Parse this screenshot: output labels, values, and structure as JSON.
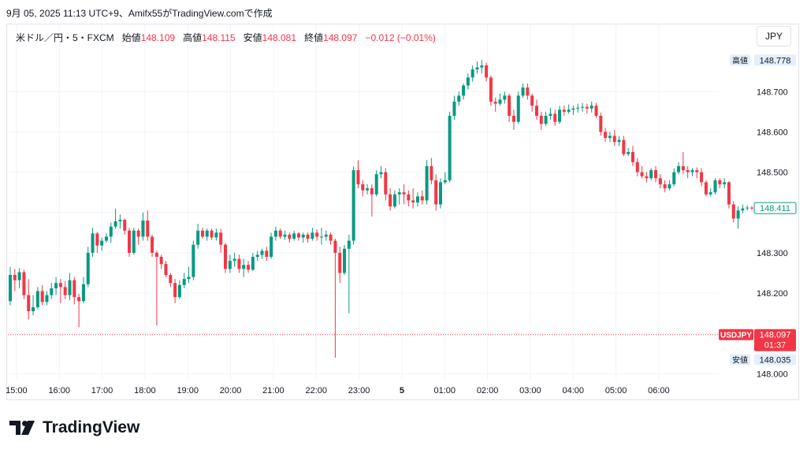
{
  "header": {
    "title": "9月 05, 2025 11:13 UTC+9、Amifx55がTradingView.comで作成"
  },
  "legend": {
    "symbol": "米ドル／円・5・FXCM",
    "open_label": "始値",
    "open": "148.109",
    "high_label": "高値",
    "high": "148.115",
    "low_label": "安値",
    "low": "148.081",
    "close_label": "終値",
    "close": "148.097",
    "change": "−0.012 (−0.01%)"
  },
  "currency_button": "JPY",
  "brand": {
    "name": "TradingView"
  },
  "colors": {
    "up": "#089981",
    "down": "#f23645",
    "grid": "#f0f3fa",
    "axis_text": "#131722",
    "tag_bg": "#e3effd"
  },
  "chart_data": {
    "type": "candlestick",
    "symbol": "USDJPY",
    "x_ticks": [
      "15:00",
      "16:00",
      "17:00",
      "18:00",
      "19:00",
      "20:00",
      "21:00",
      "22:00",
      "23:00",
      "5",
      "01:00",
      "02:00",
      "03:00",
      "04:00",
      "05:00",
      "06:00"
    ],
    "y_ticks": [
      "148.700",
      "148.600",
      "148.500",
      "148.300",
      "148.200",
      "148.000"
    ],
    "ylim": [
      147.985,
      148.81
    ],
    "xlim_hours": [
      14.8,
      31.4
    ],
    "price_tags": {
      "high": {
        "label": "高値",
        "value": "148.778"
      },
      "low": {
        "label": "安値",
        "value": "148.035"
      },
      "last": {
        "value": "148.411"
      },
      "current": {
        "label": "USDJPY",
        "value": "148.097",
        "countdown": "01:37"
      }
    },
    "candles": [
      {
        "o": 148.18,
        "h": 148.265,
        "c": 148.245,
        "l": 148.17
      },
      {
        "o": 148.245,
        "h": 148.26,
        "c": 148.232,
        "l": 148.205
      },
      {
        "o": 148.232,
        "h": 148.262,
        "c": 148.252,
        "l": 148.212
      },
      {
        "o": 148.252,
        "h": 148.258,
        "c": 148.195,
        "l": 148.185
      },
      {
        "o": 148.195,
        "h": 148.235,
        "c": 148.155,
        "l": 148.135
      },
      {
        "o": 148.155,
        "h": 148.195,
        "c": 148.165,
        "l": 148.145
      },
      {
        "o": 148.165,
        "h": 148.215,
        "c": 148.205,
        "l": 148.16
      },
      {
        "o": 148.205,
        "h": 148.22,
        "c": 148.178,
        "l": 148.17
      },
      {
        "o": 148.178,
        "h": 148.205,
        "c": 148.195,
        "l": 148.17
      },
      {
        "o": 148.195,
        "h": 148.225,
        "c": 148.212,
        "l": 148.185
      },
      {
        "o": 148.212,
        "h": 148.24,
        "c": 148.225,
        "l": 148.195
      },
      {
        "o": 148.225,
        "h": 148.235,
        "c": 148.215,
        "l": 148.175
      },
      {
        "o": 148.215,
        "h": 148.23,
        "c": 148.195,
        "l": 148.185
      },
      {
        "o": 148.195,
        "h": 148.25,
        "c": 148.232,
        "l": 148.182
      },
      {
        "o": 148.232,
        "h": 148.24,
        "c": 148.19,
        "l": 148.172
      },
      {
        "o": 148.19,
        "h": 148.198,
        "c": 148.18,
        "l": 148.115
      },
      {
        "o": 148.18,
        "h": 148.24,
        "c": 148.222,
        "l": 148.175
      },
      {
        "o": 148.222,
        "h": 148.315,
        "c": 148.3,
        "l": 148.215
      },
      {
        "o": 148.3,
        "h": 148.362,
        "c": 148.348,
        "l": 148.29
      },
      {
        "o": 148.348,
        "h": 148.352,
        "c": 148.318,
        "l": 148.3
      },
      {
        "o": 148.318,
        "h": 148.338,
        "c": 148.33,
        "l": 148.305
      },
      {
        "o": 148.33,
        "h": 148.348,
        "c": 148.34,
        "l": 148.325
      },
      {
        "o": 148.34,
        "h": 148.375,
        "c": 148.365,
        "l": 148.325
      },
      {
        "o": 148.365,
        "h": 148.41,
        "c": 148.378,
        "l": 148.36
      },
      {
        "o": 148.378,
        "h": 148.395,
        "c": 148.382,
        "l": 148.36
      },
      {
        "o": 148.382,
        "h": 148.385,
        "c": 148.355,
        "l": 148.345
      },
      {
        "o": 148.355,
        "h": 148.362,
        "c": 148.3,
        "l": 148.29
      },
      {
        "o": 148.3,
        "h": 148.362,
        "c": 148.355,
        "l": 148.295
      },
      {
        "o": 148.355,
        "h": 148.36,
        "c": 148.34,
        "l": 148.32
      },
      {
        "o": 148.34,
        "h": 148.4,
        "c": 148.38,
        "l": 148.33
      },
      {
        "o": 148.38,
        "h": 148.405,
        "c": 148.34,
        "l": 148.33
      },
      {
        "o": 148.34,
        "h": 148.345,
        "c": 148.3,
        "l": 148.29
      },
      {
        "o": 148.3,
        "h": 148.305,
        "c": 148.29,
        "l": 148.12
      },
      {
        "o": 148.29,
        "h": 148.295,
        "c": 148.272,
        "l": 148.26
      },
      {
        "o": 148.272,
        "h": 148.28,
        "c": 148.245,
        "l": 148.24
      },
      {
        "o": 148.245,
        "h": 148.25,
        "c": 148.225,
        "l": 148.215
      },
      {
        "o": 148.225,
        "h": 148.235,
        "c": 148.19,
        "l": 148.175
      },
      {
        "o": 148.19,
        "h": 148.232,
        "c": 148.22,
        "l": 148.185
      },
      {
        "o": 148.22,
        "h": 148.25,
        "c": 148.235,
        "l": 148.212
      },
      {
        "o": 148.235,
        "h": 148.265,
        "c": 148.24,
        "l": 148.225
      },
      {
        "o": 148.24,
        "h": 148.33,
        "c": 148.32,
        "l": 148.232
      },
      {
        "o": 148.32,
        "h": 148.372,
        "c": 148.355,
        "l": 148.31
      },
      {
        "o": 148.355,
        "h": 148.362,
        "c": 148.34,
        "l": 148.335
      },
      {
        "o": 148.34,
        "h": 148.36,
        "c": 148.355,
        "l": 148.33
      },
      {
        "o": 148.355,
        "h": 148.36,
        "c": 148.338,
        "l": 148.332
      },
      {
        "o": 148.338,
        "h": 148.36,
        "c": 148.35,
        "l": 148.33
      },
      {
        "o": 148.35,
        "h": 148.36,
        "c": 148.32,
        "l": 148.3
      },
      {
        "o": 148.32,
        "h": 148.325,
        "c": 148.26,
        "l": 148.25
      },
      {
        "o": 148.26,
        "h": 148.295,
        "c": 148.28,
        "l": 148.25
      },
      {
        "o": 148.28,
        "h": 148.3,
        "c": 148.285,
        "l": 148.265
      },
      {
        "o": 148.285,
        "h": 148.295,
        "c": 148.26,
        "l": 148.25
      },
      {
        "o": 148.26,
        "h": 148.285,
        "c": 148.27,
        "l": 148.24
      },
      {
        "o": 148.27,
        "h": 148.28,
        "c": 148.258,
        "l": 148.25
      },
      {
        "o": 148.258,
        "h": 148.3,
        "c": 148.29,
        "l": 148.255
      },
      {
        "o": 148.29,
        "h": 148.305,
        "c": 148.295,
        "l": 148.28
      },
      {
        "o": 148.295,
        "h": 148.31,
        "c": 148.305,
        "l": 148.285
      },
      {
        "o": 148.305,
        "h": 148.315,
        "c": 148.29,
        "l": 148.28
      },
      {
        "o": 148.29,
        "h": 148.35,
        "c": 148.34,
        "l": 148.285
      },
      {
        "o": 148.34,
        "h": 148.365,
        "c": 148.355,
        "l": 148.33
      },
      {
        "o": 148.355,
        "h": 148.36,
        "c": 148.34,
        "l": 148.335
      },
      {
        "o": 148.34,
        "h": 148.355,
        "c": 148.345,
        "l": 148.332
      },
      {
        "o": 148.345,
        "h": 148.35,
        "c": 148.335,
        "l": 148.325
      },
      {
        "o": 148.335,
        "h": 148.355,
        "c": 148.348,
        "l": 148.33
      },
      {
        "o": 148.348,
        "h": 148.352,
        "c": 148.338,
        "l": 148.33
      },
      {
        "o": 148.338,
        "h": 148.35,
        "c": 148.345,
        "l": 148.325
      },
      {
        "o": 148.345,
        "h": 148.35,
        "c": 148.335,
        "l": 148.325
      },
      {
        "o": 148.335,
        "h": 148.362,
        "c": 148.35,
        "l": 148.33
      },
      {
        "o": 148.35,
        "h": 148.358,
        "c": 148.34,
        "l": 148.33
      },
      {
        "o": 148.34,
        "h": 148.362,
        "c": 148.34,
        "l": 148.32
      },
      {
        "o": 148.34,
        "h": 148.355,
        "c": 148.345,
        "l": 148.33
      },
      {
        "o": 148.345,
        "h": 148.35,
        "c": 148.33,
        "l": 148.32
      },
      {
        "o": 148.33,
        "h": 148.335,
        "c": 148.3,
        "l": 148.04
      },
      {
        "o": 148.3,
        "h": 148.315,
        "c": 148.25,
        "l": 148.225
      },
      {
        "o": 148.25,
        "h": 148.32,
        "c": 148.31,
        "l": 148.245
      },
      {
        "o": 148.31,
        "h": 148.345,
        "c": 148.33,
        "l": 148.15
      },
      {
        "o": 148.33,
        "h": 148.515,
        "c": 148.505,
        "l": 148.32
      },
      {
        "o": 148.505,
        "h": 148.53,
        "c": 148.47,
        "l": 148.46
      },
      {
        "o": 148.47,
        "h": 148.48,
        "c": 148.455,
        "l": 148.44
      },
      {
        "o": 148.455,
        "h": 148.47,
        "c": 148.46,
        "l": 148.445
      },
      {
        "o": 148.46,
        "h": 148.47,
        "c": 148.445,
        "l": 148.39
      },
      {
        "o": 148.445,
        "h": 148.505,
        "c": 148.495,
        "l": 148.44
      },
      {
        "o": 148.495,
        "h": 148.515,
        "c": 148.5,
        "l": 148.485
      },
      {
        "o": 148.5,
        "h": 148.51,
        "c": 148.445,
        "l": 148.43
      },
      {
        "o": 148.445,
        "h": 148.46,
        "c": 148.415,
        "l": 148.405
      },
      {
        "o": 148.415,
        "h": 148.455,
        "c": 148.445,
        "l": 148.41
      },
      {
        "o": 148.445,
        "h": 148.46,
        "c": 148.45,
        "l": 148.42
      },
      {
        "o": 148.45,
        "h": 148.47,
        "c": 148.445,
        "l": 148.42
      },
      {
        "o": 148.445,
        "h": 148.455,
        "c": 148.43,
        "l": 148.415
      },
      {
        "o": 148.43,
        "h": 148.46,
        "c": 148.425,
        "l": 148.41
      },
      {
        "o": 148.425,
        "h": 148.45,
        "c": 148.44,
        "l": 148.415
      },
      {
        "o": 148.44,
        "h": 148.455,
        "c": 148.43,
        "l": 148.42
      },
      {
        "o": 148.43,
        "h": 148.53,
        "c": 148.515,
        "l": 148.42
      },
      {
        "o": 148.515,
        "h": 148.535,
        "c": 148.48,
        "l": 148.47
      },
      {
        "o": 148.48,
        "h": 148.495,
        "c": 148.42,
        "l": 148.405
      },
      {
        "o": 148.42,
        "h": 148.485,
        "c": 148.475,
        "l": 148.41
      },
      {
        "o": 148.475,
        "h": 148.5,
        "c": 148.48,
        "l": 148.47
      },
      {
        "o": 148.48,
        "h": 148.65,
        "c": 148.64,
        "l": 148.475
      },
      {
        "o": 148.64,
        "h": 148.69,
        "c": 148.675,
        "l": 148.63
      },
      {
        "o": 148.675,
        "h": 148.7,
        "c": 148.69,
        "l": 148.665
      },
      {
        "o": 148.69,
        "h": 148.72,
        "c": 148.715,
        "l": 148.68
      },
      {
        "o": 148.715,
        "h": 148.745,
        "c": 148.735,
        "l": 148.705
      },
      {
        "o": 148.735,
        "h": 148.765,
        "c": 148.755,
        "l": 148.725
      },
      {
        "o": 148.755,
        "h": 148.775,
        "c": 148.76,
        "l": 148.745
      },
      {
        "o": 148.76,
        "h": 148.778,
        "c": 148.765,
        "l": 148.745
      },
      {
        "o": 148.765,
        "h": 148.772,
        "c": 148.735,
        "l": 148.725
      },
      {
        "o": 148.735,
        "h": 148.74,
        "c": 148.675,
        "l": 148.665
      },
      {
        "o": 148.675,
        "h": 148.685,
        "c": 148.67,
        "l": 148.65
      },
      {
        "o": 148.67,
        "h": 148.695,
        "c": 148.68,
        "l": 148.665
      },
      {
        "o": 148.68,
        "h": 148.7,
        "c": 148.69,
        "l": 148.67
      },
      {
        "o": 148.69,
        "h": 148.695,
        "c": 148.64,
        "l": 148.625
      },
      {
        "o": 148.64,
        "h": 148.655,
        "c": 148.625,
        "l": 148.605
      },
      {
        "o": 148.625,
        "h": 148.7,
        "c": 148.69,
        "l": 148.62
      },
      {
        "o": 148.69,
        "h": 148.72,
        "c": 148.71,
        "l": 148.685
      },
      {
        "o": 148.71,
        "h": 148.72,
        "c": 148.69,
        "l": 148.68
      },
      {
        "o": 148.69,
        "h": 148.695,
        "c": 148.665,
        "l": 148.65
      },
      {
        "o": 148.665,
        "h": 148.68,
        "c": 148.64,
        "l": 148.63
      },
      {
        "o": 148.64,
        "h": 148.65,
        "c": 148.62,
        "l": 148.605
      },
      {
        "o": 148.62,
        "h": 148.65,
        "c": 148.64,
        "l": 148.615
      },
      {
        "o": 148.64,
        "h": 148.66,
        "c": 148.645,
        "l": 148.63
      },
      {
        "o": 148.645,
        "h": 148.655,
        "c": 148.625,
        "l": 148.615
      },
      {
        "o": 148.625,
        "h": 148.665,
        "c": 148.655,
        "l": 148.62
      },
      {
        "o": 148.655,
        "h": 148.665,
        "c": 148.65,
        "l": 148.64
      },
      {
        "o": 148.65,
        "h": 148.668,
        "c": 148.655,
        "l": 148.645
      },
      {
        "o": 148.655,
        "h": 148.665,
        "c": 148.658,
        "l": 148.642
      },
      {
        "o": 148.658,
        "h": 148.67,
        "c": 148.66,
        "l": 148.648
      },
      {
        "o": 148.66,
        "h": 148.672,
        "c": 148.662,
        "l": 148.65
      },
      {
        "o": 148.662,
        "h": 148.67,
        "c": 148.658,
        "l": 148.645
      },
      {
        "o": 148.658,
        "h": 148.675,
        "c": 148.665,
        "l": 148.648
      },
      {
        "o": 148.665,
        "h": 148.672,
        "c": 148.64,
        "l": 148.635
      },
      {
        "o": 148.64,
        "h": 148.648,
        "c": 148.6,
        "l": 148.59
      },
      {
        "o": 148.6,
        "h": 148.61,
        "c": 148.585,
        "l": 148.575
      },
      {
        "o": 148.585,
        "h": 148.6,
        "c": 148.59,
        "l": 148.575
      },
      {
        "o": 148.59,
        "h": 148.605,
        "c": 148.575,
        "l": 148.565
      },
      {
        "o": 148.575,
        "h": 148.59,
        "c": 148.58,
        "l": 148.565
      },
      {
        "o": 148.58,
        "h": 148.59,
        "c": 148.545,
        "l": 148.54
      },
      {
        "o": 148.545,
        "h": 148.56,
        "c": 148.55,
        "l": 148.54
      },
      {
        "o": 148.55,
        "h": 148.565,
        "c": 148.525,
        "l": 148.515
      },
      {
        "o": 148.525,
        "h": 148.535,
        "c": 148.5,
        "l": 148.49
      },
      {
        "o": 148.5,
        "h": 148.515,
        "c": 148.49,
        "l": 148.485
      },
      {
        "o": 148.49,
        "h": 148.5,
        "c": 148.485,
        "l": 148.475
      },
      {
        "o": 148.485,
        "h": 148.51,
        "c": 148.505,
        "l": 148.48
      },
      {
        "o": 148.505,
        "h": 148.515,
        "c": 148.485,
        "l": 148.475
      },
      {
        "o": 148.485,
        "h": 148.495,
        "c": 148.47,
        "l": 148.46
      },
      {
        "o": 148.47,
        "h": 148.48,
        "c": 148.46,
        "l": 148.45
      },
      {
        "o": 148.46,
        "h": 148.48,
        "c": 148.47,
        "l": 148.455
      },
      {
        "o": 148.47,
        "h": 148.51,
        "c": 148.5,
        "l": 148.465
      },
      {
        "o": 148.5,
        "h": 148.525,
        "c": 148.515,
        "l": 148.495
      },
      {
        "o": 148.515,
        "h": 148.55,
        "c": 148.505,
        "l": 148.495
      },
      {
        "o": 148.505,
        "h": 148.515,
        "c": 148.5,
        "l": 148.485
      },
      {
        "o": 148.5,
        "h": 148.51,
        "c": 148.505,
        "l": 148.49
      },
      {
        "o": 148.505,
        "h": 148.512,
        "c": 148.5,
        "l": 148.485
      },
      {
        "o": 148.5,
        "h": 148.51,
        "c": 148.475,
        "l": 148.465
      },
      {
        "o": 148.475,
        "h": 148.48,
        "c": 148.445,
        "l": 148.44
      },
      {
        "o": 148.445,
        "h": 148.46,
        "c": 148.45,
        "l": 148.44
      },
      {
        "o": 148.45,
        "h": 148.485,
        "c": 148.48,
        "l": 148.445
      },
      {
        "o": 148.48,
        "h": 148.485,
        "c": 148.47,
        "l": 148.46
      },
      {
        "o": 148.47,
        "h": 148.485,
        "c": 148.475,
        "l": 148.46
      },
      {
        "o": 148.475,
        "h": 148.478,
        "c": 148.42,
        "l": 148.41
      },
      {
        "o": 148.42,
        "h": 148.428,
        "c": 148.385,
        "l": 148.375
      },
      {
        "o": 148.385,
        "h": 148.415,
        "c": 148.405,
        "l": 148.36
      },
      {
        "o": 148.405,
        "h": 148.42,
        "c": 148.41,
        "l": 148.398
      },
      {
        "o": 148.41,
        "h": 148.418,
        "c": 148.412,
        "l": 148.405
      },
      {
        "o": 148.412,
        "h": 148.416,
        "c": 148.411,
        "l": 148.406
      }
    ]
  }
}
